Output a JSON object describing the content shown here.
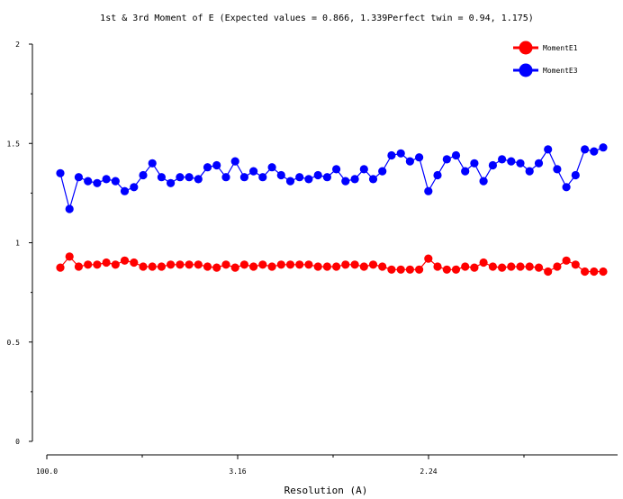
{
  "chart_data": {
    "type": "line",
    "title": "1st & 3rd Moment of E  (Expected values = 0.866, 1.339Perfect twin = 0.94, 1.175)",
    "xlabel": "Resolution (A)",
    "ylabel": "",
    "x_tick_labels": [
      "100.0",
      "3.16",
      "2.24"
    ],
    "y_tick_labels": [
      "0",
      "0.5",
      "1",
      "1.5",
      "2"
    ],
    "ylim": [
      0,
      2
    ],
    "grid": false,
    "legend_position": "top-right",
    "series": [
      {
        "name": "MomentE1",
        "color": "#ff0000",
        "values": [
          0.875,
          0.93,
          0.88,
          0.89,
          0.89,
          0.9,
          0.89,
          0.91,
          0.9,
          0.88,
          0.88,
          0.88,
          0.89,
          0.89,
          0.89,
          0.89,
          0.88,
          0.875,
          0.89,
          0.875,
          0.89,
          0.88,
          0.89,
          0.88,
          0.89,
          0.89,
          0.89,
          0.89,
          0.88,
          0.88,
          0.88,
          0.89,
          0.89,
          0.88,
          0.89,
          0.88,
          0.865,
          0.865,
          0.865,
          0.865,
          0.92,
          0.88,
          0.865,
          0.865,
          0.88,
          0.875,
          0.9,
          0.88,
          0.875,
          0.88,
          0.88,
          0.88,
          0.875,
          0.855,
          0.88,
          0.91,
          0.89,
          0.855,
          0.855,
          0.855
        ]
      },
      {
        "name": "MomentE3",
        "color": "#0000ff",
        "values": [
          1.35,
          1.17,
          1.33,
          1.31,
          1.3,
          1.32,
          1.31,
          1.26,
          1.28,
          1.34,
          1.4,
          1.33,
          1.3,
          1.33,
          1.33,
          1.32,
          1.38,
          1.39,
          1.33,
          1.41,
          1.33,
          1.36,
          1.33,
          1.38,
          1.34,
          1.31,
          1.33,
          1.32,
          1.34,
          1.33,
          1.37,
          1.31,
          1.32,
          1.37,
          1.32,
          1.36,
          1.44,
          1.45,
          1.41,
          1.43,
          1.26,
          1.34,
          1.42,
          1.44,
          1.36,
          1.4,
          1.31,
          1.39,
          1.42,
          1.41,
          1.4,
          1.36,
          1.4,
          1.47,
          1.37,
          1.28,
          1.34,
          1.47,
          1.46,
          1.48
        ]
      }
    ]
  }
}
